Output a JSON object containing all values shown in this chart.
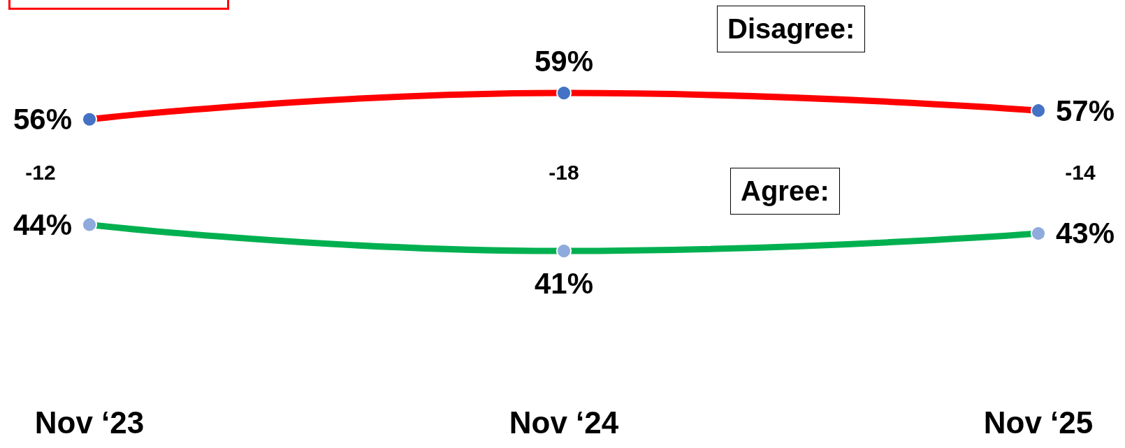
{
  "chart_data": {
    "type": "line",
    "categories": [
      "Nov ‘23",
      "Nov ‘24",
      "Nov ‘25"
    ],
    "series": [
      {
        "name": "Disagree:",
        "color": "#ff0000",
        "values": [
          56,
          59,
          57
        ],
        "value_labels": [
          "56%",
          "59%",
          "57%"
        ]
      },
      {
        "name": "Agree:",
        "color": "#00b050",
        "values": [
          44,
          41,
          43
        ],
        "value_labels": [
          "44%",
          "41%",
          "43%"
        ]
      }
    ],
    "marker": "circle",
    "line_style": "solid",
    "grid": false,
    "legend": false,
    "annotations": [
      "-12",
      "-18",
      "-14"
    ]
  }
}
